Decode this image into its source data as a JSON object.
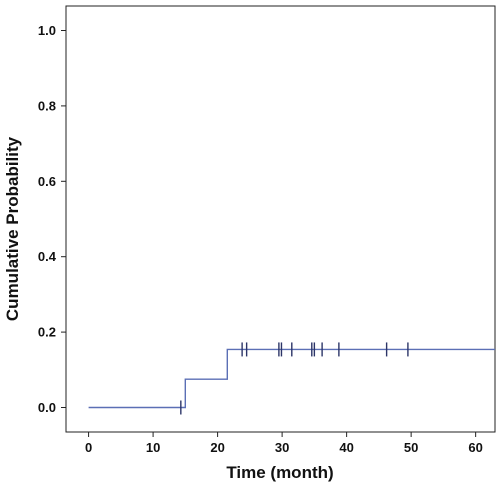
{
  "chart_data": {
    "type": "line",
    "title": "",
    "xlabel": "Time (month)",
    "ylabel": "Cumulative Probability",
    "xlim": [
      -3.5,
      63
    ],
    "ylim": [
      -0.065,
      1.065
    ],
    "xticks": [
      0,
      10,
      20,
      30,
      40,
      50,
      60
    ],
    "xtick_labels": [
      "0",
      "10",
      "20",
      "30",
      "40",
      "50",
      "60"
    ],
    "yticks": [
      0.0,
      0.2,
      0.4,
      0.6,
      0.8,
      1.0
    ],
    "ytick_labels": [
      "0.0",
      "0.2",
      "0.4",
      "0.6",
      "0.8",
      "1.0"
    ],
    "grid": false,
    "legend": "none",
    "series": [
      {
        "style": "step",
        "color": "#5b6fb5",
        "points": [
          {
            "x": 0,
            "y": 0.0
          },
          {
            "x": 15,
            "y": 0.0
          },
          {
            "x": 15,
            "y": 0.075
          },
          {
            "x": 21.5,
            "y": 0.075
          },
          {
            "x": 21.5,
            "y": 0.154
          },
          {
            "x": 63,
            "y": 0.154
          }
        ],
        "censored": [
          {
            "x": 14.3,
            "y": 0.0
          },
          {
            "x": 23.8,
            "y": 0.154
          },
          {
            "x": 24.5,
            "y": 0.154
          },
          {
            "x": 29.5,
            "y": 0.154
          },
          {
            "x": 29.9,
            "y": 0.154
          },
          {
            "x": 31.5,
            "y": 0.154
          },
          {
            "x": 34.6,
            "y": 0.154
          },
          {
            "x": 35.0,
            "y": 0.154
          },
          {
            "x": 36.2,
            "y": 0.154
          },
          {
            "x": 38.8,
            "y": 0.154
          },
          {
            "x": 46.2,
            "y": 0.154
          },
          {
            "x": 49.5,
            "y": 0.154
          }
        ]
      }
    ]
  }
}
